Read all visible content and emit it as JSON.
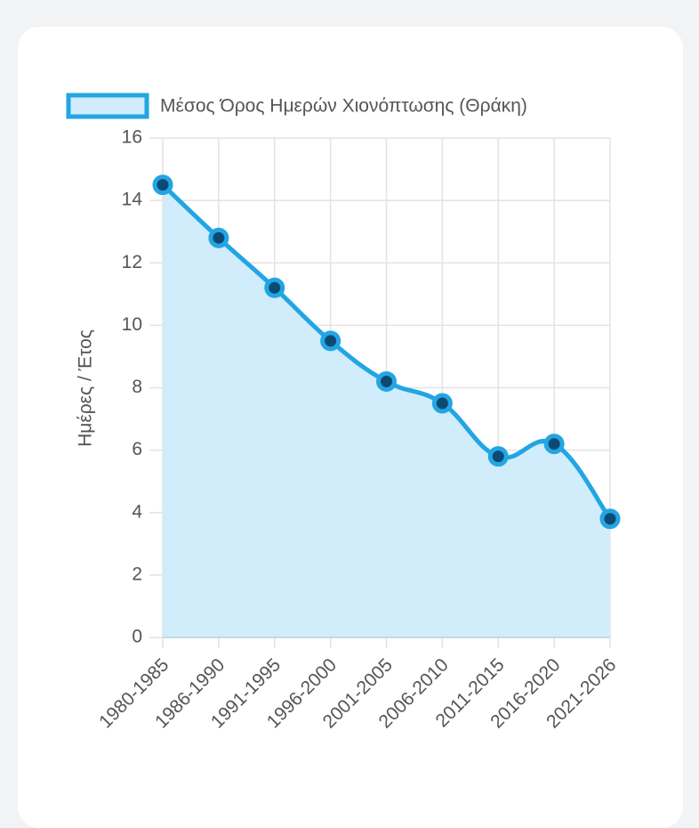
{
  "chart_data": {
    "type": "line",
    "categories": [
      "1980-1985",
      "1986-1990",
      "1991-1995",
      "1996-2000",
      "2001-2005",
      "2006-2010",
      "2011-2015",
      "2016-2020",
      "2021-2026"
    ],
    "series": [
      {
        "name": "Μέσος Όρος Ημερών Χιονόπτωσης (Θράκη)",
        "color": "#22a6e3",
        "fill": "#d1ecfa",
        "values": [
          14.5,
          12.8,
          11.2,
          9.5,
          8.2,
          7.5,
          5.8,
          6.2,
          3.8
        ]
      }
    ],
    "y_label": "Ημέρες / Έτος",
    "ylim": [
      0,
      16
    ],
    "yticks": [
      0,
      2,
      4,
      6,
      8,
      10,
      12,
      14,
      16
    ],
    "grid": true,
    "legend": "top"
  }
}
